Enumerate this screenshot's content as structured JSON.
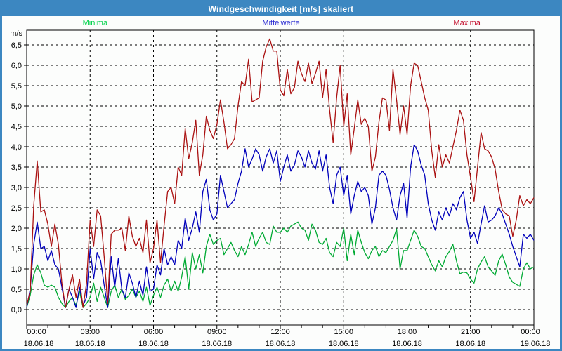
{
  "window": {
    "title": "Windgeschwindigkeit [m/s] skaliert",
    "titlebar_color": "#3c87c1",
    "frame_color": "#3c87c1",
    "background_color": "#fcfdfc"
  },
  "legend": {
    "items": [
      {
        "label": "Minima",
        "color": "#00d24a"
      },
      {
        "label": "Mittelwerte",
        "color": "#2a2ad2"
      },
      {
        "label": "Maxima",
        "color": "#c41230"
      }
    ]
  },
  "axes": {
    "unit_label": "m/s",
    "y_tick_labels": [
      "0,0",
      "0,5",
      "1,0",
      "1,5",
      "2,0",
      "2,5",
      "3,0",
      "3,5",
      "4,0",
      "4,5",
      "5,0",
      "5,5",
      "6,0",
      "6,5"
    ],
    "y_tick_step": 0.5,
    "x_ticks": [
      {
        "time": "00:00",
        "date": "18.06.18"
      },
      {
        "time": "03:00",
        "date": "18.06.18"
      },
      {
        "time": "06:00",
        "date": "18.06.18"
      },
      {
        "time": "09:00",
        "date": "18.06.18"
      },
      {
        "time": "12:00",
        "date": "18.06.18"
      },
      {
        "time": "15:00",
        "date": "18.06.18"
      },
      {
        "time": "18:00",
        "date": "18.06.18"
      },
      {
        "time": "21:00",
        "date": "18.06.18"
      },
      {
        "time": "00:00",
        "date": "19.06.18"
      }
    ],
    "x_major_interval_hours": 3,
    "x_minor_interval_hours": 1,
    "grid": "dashed"
  },
  "chart_data": {
    "type": "line",
    "title": "Windgeschwindigkeit [m/s] skaliert",
    "ylabel": "m/s",
    "ylim": [
      0,
      6.5
    ],
    "xlim_hours": [
      0,
      24
    ],
    "x_step_minutes": 10,
    "legend_position": "top",
    "series": [
      {
        "name": "Minima",
        "color": "#00aa33",
        "values": [
          0.05,
          0.35,
          0.85,
          1.1,
          0.9,
          0.6,
          0.55,
          0.6,
          0.55,
          0.3,
          0.15,
          0.05,
          0.2,
          0.3,
          0.1,
          0.45,
          0.05,
          0.15,
          0.3,
          0.65,
          0.2,
          0.55,
          0.3,
          0.05,
          0.45,
          0.6,
          0.3,
          0.5,
          0.25,
          0.35,
          0.5,
          0.3,
          0.45,
          0.2,
          0.55,
          0.1,
          0.35,
          0.55,
          0.3,
          0.6,
          0.75,
          0.45,
          0.7,
          0.45,
          0.8,
          1.3,
          0.5,
          1.4,
          1.0,
          1.35,
          0.9,
          1.55,
          1.85,
          1.6,
          1.7,
          1.75,
          1.35,
          1.5,
          1.65,
          1.45,
          1.3,
          1.55,
          1.35,
          1.6,
          1.9,
          1.55,
          1.75,
          1.9,
          1.65,
          1.6,
          2.05,
          1.9,
          1.9,
          2.0,
          1.9,
          2.05,
          2.1,
          2.15,
          2.0,
          1.95,
          1.7,
          2.1,
          1.95,
          1.65,
          1.6,
          1.75,
          1.4,
          1.3,
          1.65,
          1.55,
          2.0,
          1.2,
          1.85,
          1.35,
          1.95,
          1.65,
          1.4,
          1.25,
          1.45,
          1.55,
          1.3,
          1.45,
          1.4,
          1.55,
          1.7,
          1.98,
          1.0,
          1.45,
          1.45,
          1.7,
          1.95,
          1.8,
          1.55,
          1.5,
          1.3,
          1.1,
          0.95,
          1.2,
          1.05,
          1.3,
          1.43,
          1.6,
          1.2,
          0.88,
          0.92,
          0.9,
          0.75,
          0.65,
          1.0,
          1.17,
          1.3,
          1.05,
          0.95,
          0.84,
          1.2,
          1.36,
          1.1,
          0.8,
          0.67,
          0.62,
          0.57,
          1.0,
          1.15,
          1.0,
          1.05
        ]
      },
      {
        "name": "Mittelwerte",
        "color": "#0000bb",
        "values": [
          0.05,
          0.5,
          1.6,
          2.15,
          1.5,
          1.55,
          1.2,
          1.45,
          1.1,
          1.0,
          0.55,
          0.05,
          0.5,
          0.3,
          0.05,
          0.55,
          0.1,
          0.3,
          1.5,
          0.75,
          1.4,
          1.2,
          0.6,
          0.05,
          1.3,
          0.55,
          1.25,
          0.5,
          0.3,
          0.9,
          0.65,
          0.3,
          0.7,
          0.35,
          1.05,
          0.45,
          0.5,
          1.1,
          0.85,
          1.5,
          1.1,
          1.3,
          1.1,
          1.7,
          1.5,
          2.25,
          1.7,
          2.0,
          2.4,
          1.9,
          2.9,
          3.2,
          2.45,
          2.2,
          2.35,
          3.3,
          2.9,
          2.5,
          2.6,
          2.7,
          3.1,
          3.4,
          3.95,
          3.5,
          3.7,
          3.95,
          3.8,
          3.4,
          3.75,
          3.95,
          3.6,
          3.9,
          3.15,
          3.5,
          3.8,
          3.4,
          3.55,
          3.9,
          3.75,
          3.5,
          3.9,
          3.6,
          3.45,
          3.9,
          3.4,
          3.8,
          3.0,
          2.6,
          3.3,
          3.5,
          2.8,
          3.3,
          2.35,
          2.8,
          3.15,
          2.9,
          3.0,
          2.8,
          2.1,
          2.5,
          3.3,
          3.4,
          3.3,
          2.95,
          2.5,
          2.2,
          2.8,
          3.1,
          2.25,
          3.5,
          4.05,
          3.9,
          3.55,
          3.3,
          2.6,
          2.2,
          1.95,
          2.4,
          2.2,
          2.5,
          2.3,
          2.6,
          2.45,
          2.75,
          2.9,
          2.2,
          1.75,
          1.9,
          1.62,
          2.1,
          2.55,
          2.15,
          2.2,
          2.3,
          2.5,
          2.35,
          2.1,
          1.85,
          1.55,
          1.3,
          1.05,
          1.85,
          1.75,
          1.85,
          1.7
        ]
      },
      {
        "name": "Maxima",
        "color": "#aa1111",
        "values": [
          0.1,
          0.45,
          2.55,
          3.65,
          2.4,
          2.45,
          2.1,
          1.55,
          2.1,
          1.6,
          0.65,
          0.05,
          0.5,
          0.85,
          0.3,
          0.75,
          0.05,
          0.65,
          2.2,
          1.55,
          2.45,
          2.3,
          1.3,
          0.15,
          1.85,
          1.95,
          1.95,
          2.0,
          1.45,
          2.3,
          1.8,
          1.55,
          1.75,
          1.4,
          2.2,
          1.15,
          1.5,
          2.2,
          1.15,
          2.05,
          2.9,
          3.0,
          2.6,
          3.5,
          3.3,
          4.45,
          3.7,
          4.1,
          4.65,
          3.3,
          3.8,
          4.75,
          4.4,
          4.2,
          4.55,
          5.15,
          4.6,
          3.95,
          4.05,
          4.2,
          5.0,
          5.6,
          5.5,
          6.15,
          5.1,
          5.15,
          5.2,
          6.1,
          6.45,
          6.65,
          6.35,
          6.35,
          5.4,
          5.25,
          5.9,
          5.3,
          5.45,
          6.1,
          5.8,
          5.6,
          6.05,
          5.55,
          5.8,
          6.1,
          5.2,
          5.9,
          4.9,
          4.1,
          5.2,
          6.0,
          4.5,
          5.3,
          3.8,
          4.45,
          5.15,
          4.55,
          4.7,
          4.5,
          3.4,
          3.75,
          4.6,
          5.2,
          5.15,
          4.4,
          5.9,
          5.15,
          4.3,
          5.0,
          4.3,
          5.5,
          6.05,
          6.0,
          5.6,
          5.2,
          4.9,
          3.9,
          3.25,
          4.05,
          3.5,
          3.8,
          3.6,
          4.0,
          4.4,
          4.9,
          4.65,
          3.8,
          3.25,
          2.65,
          3.5,
          4.35,
          3.95,
          3.9,
          3.75,
          3.45,
          2.9,
          2.45,
          2.35,
          2.3,
          1.8,
          2.2,
          2.8,
          2.55,
          2.7,
          2.6,
          2.75
        ]
      }
    ]
  }
}
